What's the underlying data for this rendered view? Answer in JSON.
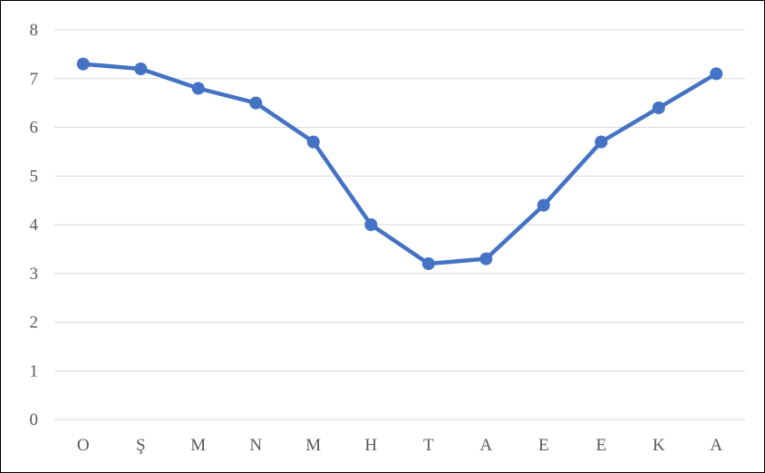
{
  "chart_data": {
    "type": "line",
    "title": "",
    "xlabel": "",
    "ylabel": "",
    "categories": [
      "O",
      "Ş",
      "M",
      "N",
      "M",
      "H",
      "T",
      "A",
      "E",
      "E",
      "K",
      "A"
    ],
    "series": [
      {
        "values": [
          7.3,
          7.2,
          6.8,
          6.5,
          5.7,
          4.0,
          3.2,
          3.3,
          4.4,
          5.7,
          6.4,
          7.1
        ]
      }
    ],
    "ylim": [
      0,
      8
    ],
    "yticks": [
      "0",
      "1",
      "2",
      "3",
      "4",
      "5",
      "6",
      "7",
      "8"
    ],
    "grid": true,
    "legend": "none",
    "colors": {
      "line": "#4472C4",
      "grid": "#D9D9D9",
      "tick": "#595959",
      "border": "#000000"
    }
  }
}
